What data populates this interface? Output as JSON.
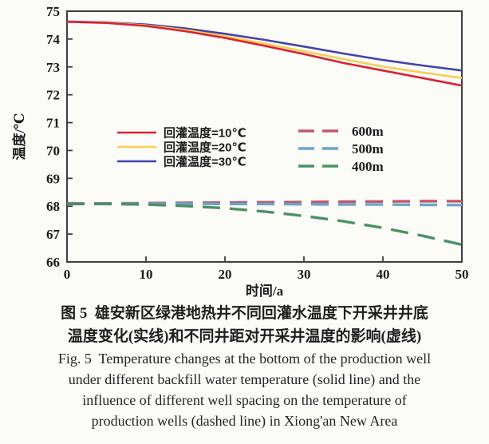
{
  "chart_data": {
    "type": "line",
    "title": "",
    "xlabel": "时间/a",
    "ylabel": "温度/℃",
    "xlim": [
      0,
      50
    ],
    "ylim": [
      66,
      75
    ],
    "x_ticks": [
      0,
      10,
      20,
      30,
      40,
      50
    ],
    "y_ticks": [
      66,
      67,
      68,
      69,
      70,
      71,
      72,
      73,
      74,
      75
    ],
    "grid": false,
    "x": [
      0,
      5,
      10,
      15,
      20,
      25,
      30,
      35,
      40,
      45,
      50
    ],
    "series": [
      {
        "name": "回灌温度=10℃",
        "style": "solid",
        "color": "#da2332",
        "values": [
          74.62,
          74.58,
          74.47,
          74.28,
          74.04,
          73.76,
          73.46,
          73.14,
          72.87,
          72.6,
          72.33
        ]
      },
      {
        "name": "回灌温度=20℃",
        "style": "solid",
        "color": "#f6d054",
        "values": [
          74.62,
          74.59,
          74.49,
          74.32,
          74.1,
          73.84,
          73.56,
          73.28,
          73.01,
          72.8,
          72.6
        ]
      },
      {
        "name": "回灌温度=30℃",
        "style": "solid",
        "color": "#4244a8",
        "values": [
          74.63,
          74.6,
          74.52,
          74.38,
          74.19,
          73.97,
          73.73,
          73.48,
          73.25,
          73.05,
          72.87
        ]
      },
      {
        "name": "600m",
        "style": "dashed",
        "color": "#c4566b",
        "values": [
          68.1,
          68.1,
          68.11,
          68.12,
          68.13,
          68.14,
          68.15,
          68.16,
          68.17,
          68.18,
          68.18
        ]
      },
      {
        "name": "500m",
        "style": "dashed",
        "color": "#6ba5c9",
        "values": [
          68.09,
          68.09,
          68.09,
          68.09,
          68.08,
          68.08,
          68.07,
          68.06,
          68.06,
          68.05,
          68.04
        ]
      },
      {
        "name": "400m",
        "style": "dashed",
        "color": "#4b9164",
        "values": [
          68.08,
          68.08,
          68.06,
          68.01,
          67.93,
          67.81,
          67.65,
          67.46,
          67.22,
          66.94,
          66.62
        ]
      }
    ],
    "legend": {
      "solid_entries": [
        "回灌温度=10℃",
        "回灌温度=20℃",
        "回灌温度=30℃"
      ],
      "dashed_entries": [
        "600m",
        "500m",
        "400m"
      ],
      "position": "inside middle"
    },
    "axis_color": "#3f3f3f"
  },
  "caption": {
    "zh_line1": "图 5  雄安新区绿港地热井不同回灌水温度下开采井井底",
    "zh_line2": "温度变化(实线)和不同井距对开采井温度的影响(虚线)",
    "en_line1": "Fig. 5  Temperature changes at the bottom of the production well",
    "en_line2": "under different backfill water temperature (solid line) and the",
    "en_line3": "influence of different well spacing on the temperature of",
    "en_line4": "production wells (dashed line) in Xiong'an New Area"
  }
}
